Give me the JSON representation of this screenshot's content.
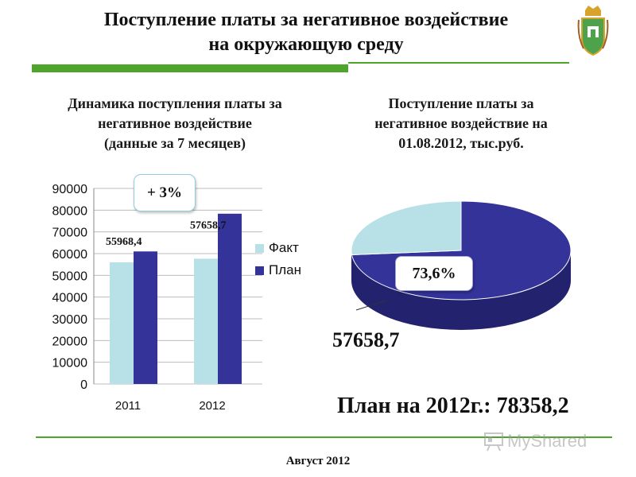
{
  "slide": {
    "title_line1": "Поступление платы за негативное воздействие",
    "title_line2": "на окружающую среду",
    "footer": "Август 2012",
    "watermark": "MyShared"
  },
  "left_panel": {
    "subtitle_line1": "Динамика поступления платы за",
    "subtitle_line2": "негативное воздействие",
    "subtitle_line3": "(данные за 7 месяцев)",
    "growth_label": "+ 3%"
  },
  "right_panel": {
    "subtitle_line1": "Поступление платы за",
    "subtitle_line2": "негативное воздействие на",
    "subtitle_line3": "01.08.2012, тыс.руб.",
    "percent_label": "73,6%",
    "value_label": "57658,7",
    "plan_text": "План на 2012г.: 78358,2"
  },
  "chart_data": [
    {
      "type": "bar",
      "categories": [
        "2011",
        "2012"
      ],
      "series": [
        {
          "name": "Факт",
          "values": [
            55968.4,
            57658.7
          ],
          "color": "#b7e1e6"
        },
        {
          "name": "План",
          "values": [
            61000,
            78358.2
          ],
          "color": "#33339a"
        }
      ],
      "data_labels": [
        "55968,4",
        "57658,7"
      ],
      "ylim": [
        0,
        90000
      ],
      "yticks": [
        "0",
        "10000",
        "20000",
        "30000",
        "40000",
        "50000",
        "60000",
        "70000",
        "80000",
        "90000"
      ],
      "grid": true,
      "legend": "right"
    },
    {
      "type": "pie",
      "slices": [
        {
          "label": "57658,7",
          "value": 73.6,
          "color": "#33339a"
        },
        {
          "label": "",
          "value": 26.4,
          "color": "#b7e1e6"
        }
      ]
    }
  ]
}
